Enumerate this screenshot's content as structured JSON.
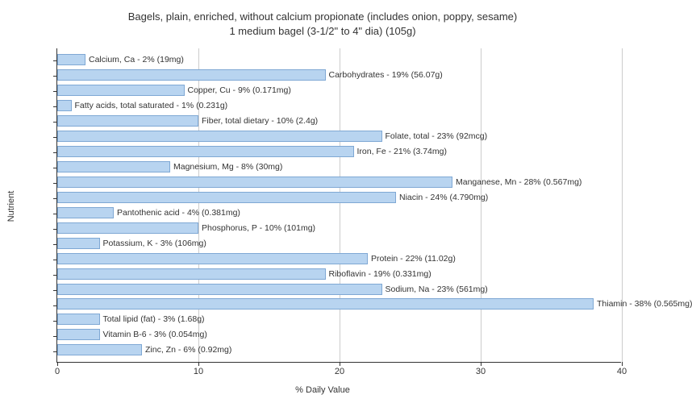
{
  "chart": {
    "type": "bar-horizontal",
    "title_line1": "Bagels, plain, enriched, without calcium propionate (includes onion, poppy, sesame)",
    "title_line2": "1 medium bagel (3-1/2\" to 4\" dia) (105g)",
    "title_fontsize": 13,
    "x_label": "% Daily Value",
    "y_label": "Nutrient",
    "label_fontsize": 11,
    "xlim": [
      0,
      40
    ],
    "xtick_step": 10,
    "xticks": [
      0,
      10,
      20,
      30,
      40
    ],
    "background_color": "#ffffff",
    "grid_color": "#cccccc",
    "bar_color": "#b8d4f0",
    "bar_border_color": "#7fa8d4",
    "axis_color": "#333333",
    "text_color": "#333333",
    "bars": [
      {
        "label": "Calcium, Ca - 2% (19mg)",
        "value": 2
      },
      {
        "label": "Carbohydrates - 19% (56.07g)",
        "value": 19
      },
      {
        "label": "Copper, Cu - 9% (0.171mg)",
        "value": 9
      },
      {
        "label": "Fatty acids, total saturated - 1% (0.231g)",
        "value": 1
      },
      {
        "label": "Fiber, total dietary - 10% (2.4g)",
        "value": 10
      },
      {
        "label": "Folate, total - 23% (92mcg)",
        "value": 23
      },
      {
        "label": "Iron, Fe - 21% (3.74mg)",
        "value": 21
      },
      {
        "label": "Magnesium, Mg - 8% (30mg)",
        "value": 8
      },
      {
        "label": "Manganese, Mn - 28% (0.567mg)",
        "value": 28
      },
      {
        "label": "Niacin - 24% (4.790mg)",
        "value": 24
      },
      {
        "label": "Pantothenic acid - 4% (0.381mg)",
        "value": 4
      },
      {
        "label": "Phosphorus, P - 10% (101mg)",
        "value": 10
      },
      {
        "label": "Potassium, K - 3% (106mg)",
        "value": 3
      },
      {
        "label": "Protein - 22% (11.02g)",
        "value": 22
      },
      {
        "label": "Riboflavin - 19% (0.331mg)",
        "value": 19
      },
      {
        "label": "Sodium, Na - 23% (561mg)",
        "value": 23
      },
      {
        "label": "Thiamin - 38% (0.565mg)",
        "value": 38
      },
      {
        "label": "Total lipid (fat) - 3% (1.68g)",
        "value": 3
      },
      {
        "label": "Vitamin B-6 - 3% (0.054mg)",
        "value": 3
      },
      {
        "label": "Zinc, Zn - 6% (0.92mg)",
        "value": 6
      }
    ]
  }
}
